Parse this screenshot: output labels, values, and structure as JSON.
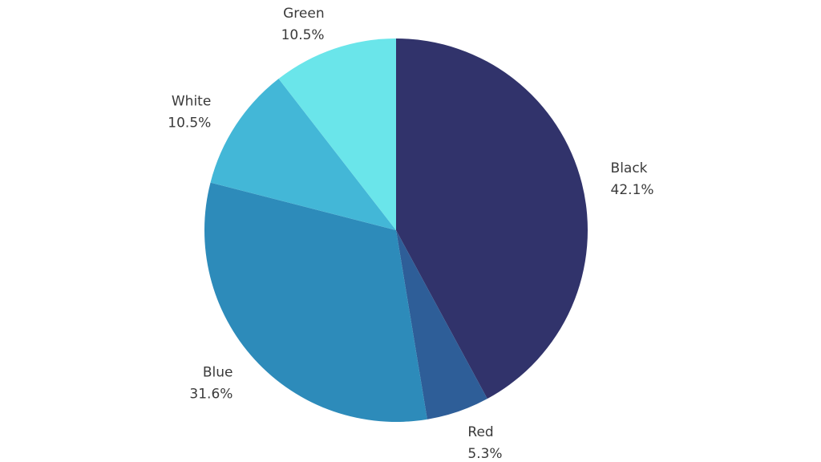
{
  "chart_data": {
    "type": "pie",
    "slices": [
      {
        "label": "Black",
        "value": 42.1,
        "value_label": "42.1%",
        "color": "#31336b"
      },
      {
        "label": "Red",
        "value": 5.3,
        "value_label": "5.3%",
        "color": "#2e5e98"
      },
      {
        "label": "Blue",
        "value": 31.6,
        "value_label": "31.6%",
        "color": "#2d8bba"
      },
      {
        "label": "White",
        "value": 10.5,
        "value_label": "10.5%",
        "color": "#43b7d7"
      },
      {
        "label": "Green",
        "value": 10.5,
        "value_label": "10.5%",
        "color": "#6ae5ea"
      }
    ],
    "start_angle": "top",
    "direction": "clockwise",
    "legend": "none"
  }
}
